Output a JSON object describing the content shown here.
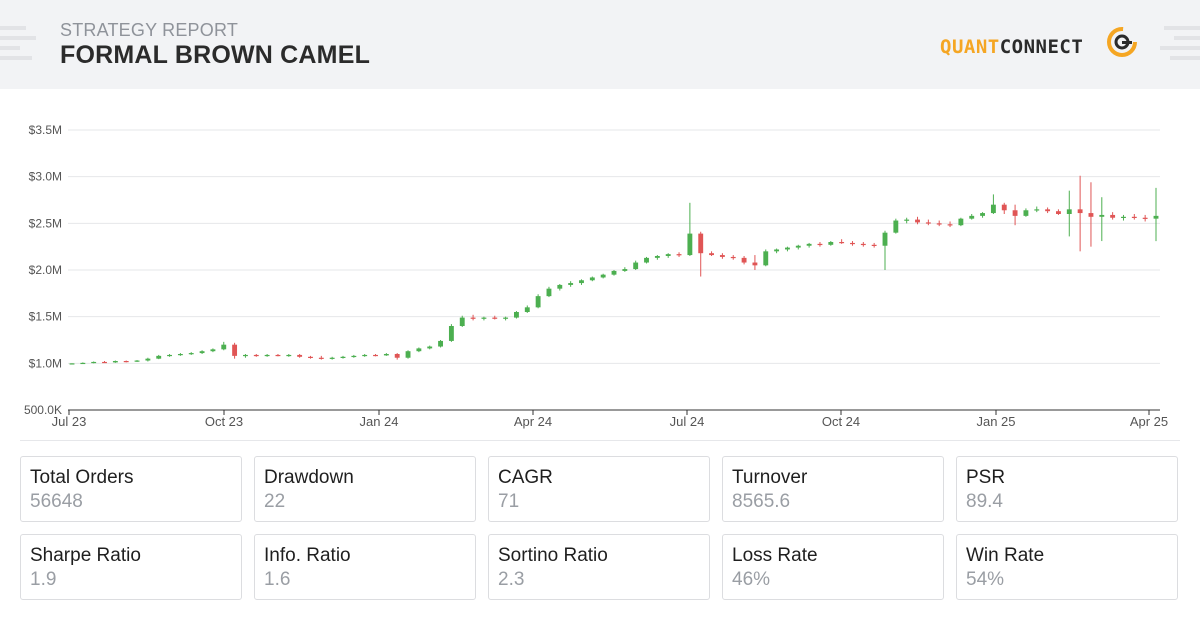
{
  "header": {
    "label": "STRATEGY REPORT",
    "title": "FORMAL BROWN CAMEL",
    "logo": {
      "part1": "QUANT",
      "part2": "CONNECT",
      "accent": "#f5a623",
      "dark": "#2b2b2b"
    }
  },
  "chart_data": {
    "type": "candlestick",
    "title": "",
    "xlabel": "",
    "ylabel": "",
    "ylim": [
      500000,
      3500000
    ],
    "y_ticks": [
      {
        "value": 500000,
        "label": "500.0K"
      },
      {
        "value": 1000000,
        "label": "$1.0M"
      },
      {
        "value": 1500000,
        "label": "$1.5M"
      },
      {
        "value": 2000000,
        "label": "$2.0M"
      },
      {
        "value": 2500000,
        "label": "$2.5M"
      },
      {
        "value": 3000000,
        "label": "$3.0M"
      },
      {
        "value": 3500000,
        "label": "$3.5M"
      }
    ],
    "x_ticks": [
      "Jul 23",
      "Oct 23",
      "Jan 24",
      "Apr 24",
      "Jul 24",
      "Oct 24",
      "Jan 25",
      "Apr 25"
    ],
    "grid": true,
    "colors": {
      "up": "#4caf50",
      "down": "#e05555",
      "grid": "#e6e7ea",
      "axis": "#333333"
    },
    "series": [
      {
        "values": [
          [
            1000000,
            1000000,
            990000,
            1000000
          ],
          [
            1000000,
            1010000,
            995000,
            1005000
          ],
          [
            1005000,
            1020000,
            1000000,
            1015000
          ],
          [
            1015000,
            1025000,
            1005000,
            1010000
          ],
          [
            1010000,
            1030000,
            1005000,
            1025000
          ],
          [
            1025000,
            1030000,
            1010000,
            1020000
          ],
          [
            1020000,
            1035000,
            1015000,
            1030000
          ],
          [
            1030000,
            1060000,
            1020000,
            1050000
          ],
          [
            1050000,
            1090000,
            1045000,
            1080000
          ],
          [
            1080000,
            1100000,
            1070000,
            1090000
          ],
          [
            1090000,
            1110000,
            1080000,
            1100000
          ],
          [
            1100000,
            1120000,
            1090000,
            1110000
          ],
          [
            1110000,
            1140000,
            1100000,
            1130000
          ],
          [
            1130000,
            1160000,
            1120000,
            1150000
          ],
          [
            1150000,
            1230000,
            1140000,
            1200000
          ],
          [
            1200000,
            1220000,
            1050000,
            1080000
          ],
          [
            1080000,
            1100000,
            1060000,
            1090000
          ],
          [
            1090000,
            1100000,
            1070000,
            1080000
          ],
          [
            1080000,
            1100000,
            1070000,
            1090000
          ],
          [
            1090000,
            1100000,
            1075000,
            1085000
          ],
          [
            1085000,
            1100000,
            1070000,
            1090000
          ],
          [
            1090000,
            1100000,
            1060000,
            1070000
          ],
          [
            1070000,
            1080000,
            1050000,
            1060000
          ],
          [
            1060000,
            1080000,
            1040000,
            1050000
          ],
          [
            1050000,
            1070000,
            1040000,
            1060000
          ],
          [
            1060000,
            1080000,
            1050000,
            1070000
          ],
          [
            1070000,
            1090000,
            1060000,
            1080000
          ],
          [
            1080000,
            1100000,
            1070000,
            1090000
          ],
          [
            1090000,
            1100000,
            1075000,
            1085000
          ],
          [
            1085000,
            1110000,
            1080000,
            1100000
          ],
          [
            1100000,
            1110000,
            1040000,
            1060000
          ],
          [
            1060000,
            1140000,
            1050000,
            1130000
          ],
          [
            1130000,
            1170000,
            1120000,
            1160000
          ],
          [
            1160000,
            1190000,
            1150000,
            1180000
          ],
          [
            1180000,
            1250000,
            1170000,
            1240000
          ],
          [
            1240000,
            1420000,
            1230000,
            1400000
          ],
          [
            1400000,
            1510000,
            1390000,
            1490000
          ],
          [
            1490000,
            1520000,
            1460000,
            1480000
          ],
          [
            1480000,
            1500000,
            1460000,
            1490000
          ],
          [
            1490000,
            1510000,
            1470000,
            1480000
          ],
          [
            1480000,
            1500000,
            1460000,
            1490000
          ],
          [
            1490000,
            1560000,
            1480000,
            1550000
          ],
          [
            1550000,
            1620000,
            1540000,
            1600000
          ],
          [
            1600000,
            1740000,
            1590000,
            1720000
          ],
          [
            1720000,
            1820000,
            1710000,
            1800000
          ],
          [
            1800000,
            1850000,
            1780000,
            1840000
          ],
          [
            1840000,
            1880000,
            1820000,
            1860000
          ],
          [
            1860000,
            1900000,
            1840000,
            1890000
          ],
          [
            1890000,
            1930000,
            1880000,
            1920000
          ],
          [
            1920000,
            1960000,
            1910000,
            1950000
          ],
          [
            1950000,
            2000000,
            1940000,
            1990000
          ],
          [
            1990000,
            2030000,
            1980000,
            2010000
          ],
          [
            2010000,
            2100000,
            2000000,
            2080000
          ],
          [
            2080000,
            2140000,
            2070000,
            2130000
          ],
          [
            2130000,
            2160000,
            2110000,
            2150000
          ],
          [
            2150000,
            2180000,
            2130000,
            2170000
          ],
          [
            2170000,
            2190000,
            2140000,
            2160000
          ],
          [
            2160000,
            2720000,
            2150000,
            2390000
          ],
          [
            2390000,
            2410000,
            1930000,
            2180000
          ],
          [
            2180000,
            2200000,
            2150000,
            2160000
          ],
          [
            2160000,
            2180000,
            2120000,
            2140000
          ],
          [
            2140000,
            2160000,
            2110000,
            2130000
          ],
          [
            2130000,
            2150000,
            2060000,
            2080000
          ],
          [
            2080000,
            2160000,
            2000000,
            2050000
          ],
          [
            2050000,
            2220000,
            2040000,
            2200000
          ],
          [
            2200000,
            2230000,
            2180000,
            2220000
          ],
          [
            2220000,
            2250000,
            2200000,
            2240000
          ],
          [
            2240000,
            2270000,
            2220000,
            2260000
          ],
          [
            2260000,
            2290000,
            2240000,
            2280000
          ],
          [
            2280000,
            2300000,
            2250000,
            2270000
          ],
          [
            2270000,
            2310000,
            2260000,
            2300000
          ],
          [
            2300000,
            2330000,
            2280000,
            2290000
          ],
          [
            2290000,
            2310000,
            2260000,
            2280000
          ],
          [
            2280000,
            2300000,
            2250000,
            2270000
          ],
          [
            2270000,
            2290000,
            2240000,
            2260000
          ],
          [
            2260000,
            2420000,
            2000000,
            2400000
          ],
          [
            2400000,
            2550000,
            2390000,
            2530000
          ],
          [
            2530000,
            2560000,
            2500000,
            2540000
          ],
          [
            2540000,
            2570000,
            2490000,
            2510000
          ],
          [
            2510000,
            2540000,
            2480000,
            2500000
          ],
          [
            2500000,
            2530000,
            2470000,
            2490000
          ],
          [
            2490000,
            2520000,
            2460000,
            2480000
          ],
          [
            2480000,
            2560000,
            2470000,
            2550000
          ],
          [
            2550000,
            2600000,
            2540000,
            2580000
          ],
          [
            2580000,
            2620000,
            2560000,
            2610000
          ],
          [
            2610000,
            2810000,
            2600000,
            2700000
          ],
          [
            2700000,
            2720000,
            2600000,
            2640000
          ],
          [
            2640000,
            2700000,
            2480000,
            2580000
          ],
          [
            2580000,
            2660000,
            2570000,
            2640000
          ],
          [
            2640000,
            2680000,
            2620000,
            2650000
          ],
          [
            2650000,
            2670000,
            2610000,
            2630000
          ],
          [
            2630000,
            2650000,
            2590000,
            2600000
          ],
          [
            2600000,
            2850000,
            2360000,
            2650000
          ],
          [
            2650000,
            3010000,
            2200000,
            2610000
          ],
          [
            2610000,
            2940000,
            2250000,
            2570000
          ],
          [
            2570000,
            2780000,
            2310000,
            2590000
          ],
          [
            2590000,
            2620000,
            2540000,
            2560000
          ],
          [
            2560000,
            2590000,
            2530000,
            2570000
          ],
          [
            2570000,
            2600000,
            2540000,
            2560000
          ],
          [
            2560000,
            2590000,
            2520000,
            2550000
          ],
          [
            2550000,
            2880000,
            2310000,
            2580000
          ]
        ]
      }
    ]
  },
  "stats": [
    {
      "label": "Total Orders",
      "value": "56648"
    },
    {
      "label": "Drawdown",
      "value": "22"
    },
    {
      "label": "CAGR",
      "value": "71"
    },
    {
      "label": "Turnover",
      "value": "8565.6"
    },
    {
      "label": "PSR",
      "value": "89.4"
    },
    {
      "label": "Sharpe Ratio",
      "value": "1.9"
    },
    {
      "label": "Info. Ratio",
      "value": "1.6"
    },
    {
      "label": "Sortino Ratio",
      "value": "2.3"
    },
    {
      "label": "Loss Rate",
      "value": "46%"
    },
    {
      "label": "Win Rate",
      "value": "54%"
    }
  ]
}
